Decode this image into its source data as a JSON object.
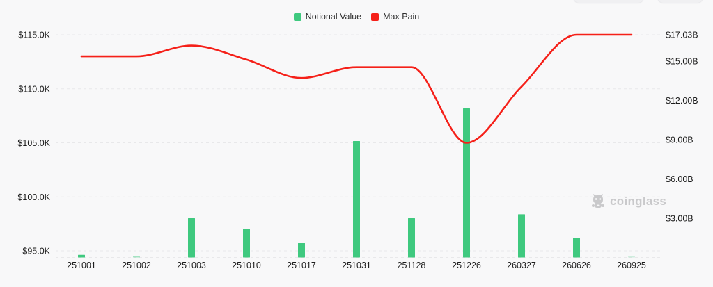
{
  "page": {
    "background": "#f8f8f9"
  },
  "legend": {
    "items": [
      {
        "label": "Notional Value",
        "color": "#3fc97f"
      },
      {
        "label": "Max Pain",
        "color": "#f52019"
      }
    ]
  },
  "watermark": {
    "text": "coinglass"
  },
  "chart_data": {
    "type": "bar+line combo",
    "title": "",
    "categories": [
      "251001",
      "251002",
      "251003",
      "251010",
      "251017",
      "251031",
      "251128",
      "251226",
      "260327",
      "260626",
      "260925"
    ],
    "series": [
      {
        "name": "Notional Value",
        "type": "bar",
        "axis": "right",
        "unit": "B USD",
        "color": "#3fc97f",
        "values": [
          0.2,
          0.1,
          3.0,
          2.2,
          1.1,
          8.9,
          3.0,
          11.4,
          3.3,
          1.5,
          0.08
        ],
        "bar_opacity": [
          1,
          0.45,
          1,
          1,
          1,
          1,
          1,
          1,
          1,
          1,
          0.22
        ]
      },
      {
        "name": "Max Pain",
        "type": "line",
        "axis": "left",
        "unit": "K USD",
        "color": "#f52019",
        "smooth": true,
        "values": [
          113.0,
          113.0,
          114.0,
          112.7,
          111.0,
          112.0,
          112.0,
          105.0,
          110.2,
          115.0,
          115.0
        ]
      }
    ],
    "left_axis": {
      "tick_labels": [
        "$115.0K",
        "$110.0K",
        "$105.0K",
        "$100.0K",
        "$95.0K"
      ],
      "tick_values": [
        115.0,
        110.0,
        105.0,
        100.0,
        95.0
      ],
      "range": [
        94.4,
        115.0
      ]
    },
    "right_axis": {
      "tick_labels": [
        "$17.03B",
        "$15.00B",
        "$12.00B",
        "$9.00B",
        "$6.00B",
        "$3.00B"
      ],
      "tick_values": [
        17.03,
        15.0,
        12.0,
        9.0,
        6.0,
        3.0
      ],
      "range": [
        0,
        17.03
      ]
    },
    "grid": "horizontal-dashed",
    "legend_position": "top-center",
    "text_color": "#1c1c1c",
    "grid_color": "#e8e8ea"
  }
}
